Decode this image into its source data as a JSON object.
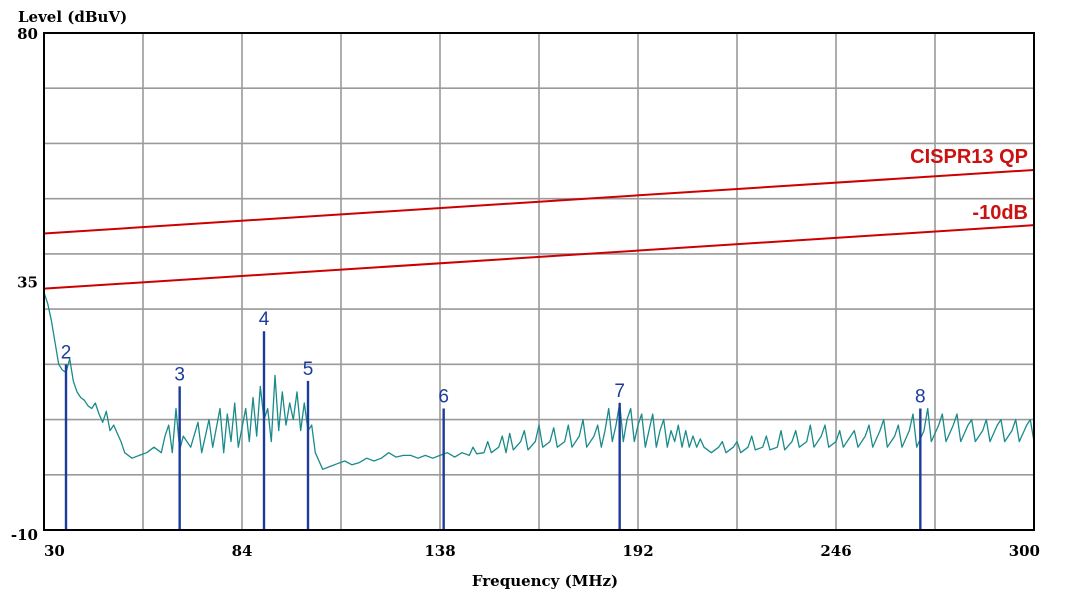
{
  "chart_data": {
    "type": "line",
    "title": "",
    "ylabel": "Level (dBuV)",
    "xlabel": "Frequency (MHz)",
    "xlim": [
      30,
      300
    ],
    "ylim": [
      -10,
      80
    ],
    "x_tick_labels": [
      "30",
      "84",
      "138",
      "192",
      "246",
      "300"
    ],
    "y_tick_labels": [
      "80",
      "35",
      "-10"
    ],
    "x_ticks": [
      30,
      84,
      138,
      192,
      246,
      300
    ],
    "y_ticks": [
      80,
      35,
      -10
    ],
    "grid": true,
    "limit_lines": [
      {
        "name": "CISPR13 QP",
        "color": "#cc0000",
        "points": [
          [
            30,
            43.7
          ],
          [
            300,
            55.2
          ]
        ]
      },
      {
        "name": "-10dB",
        "color": "#cc0000",
        "points": [
          [
            30,
            33.7
          ],
          [
            300,
            45.2
          ]
        ]
      }
    ],
    "series": [
      {
        "color": "#1a8a8a",
        "points": [
          [
            30,
            33
          ],
          [
            31,
            31
          ],
          [
            32,
            28
          ],
          [
            33,
            24
          ],
          [
            34,
            20
          ],
          [
            35,
            19
          ],
          [
            36,
            18.5
          ],
          [
            37,
            21
          ],
          [
            38,
            17
          ],
          [
            39,
            15
          ],
          [
            40,
            14
          ],
          [
            41,
            13.5
          ],
          [
            42,
            12.5
          ],
          [
            43,
            12
          ],
          [
            44,
            13
          ],
          [
            45,
            11
          ],
          [
            46,
            9.5
          ],
          [
            47,
            11.5
          ],
          [
            48,
            8
          ],
          [
            49,
            9
          ],
          [
            50,
            7.5
          ],
          [
            51,
            6
          ],
          [
            52,
            4
          ],
          [
            54,
            3
          ],
          [
            56,
            3.5
          ],
          [
            58,
            4
          ],
          [
            60,
            5
          ],
          [
            62,
            4
          ],
          [
            63,
            7
          ],
          [
            64,
            9
          ],
          [
            65,
            4
          ],
          [
            66,
            12
          ],
          [
            67,
            4.5
          ],
          [
            68,
            7
          ],
          [
            70,
            5
          ],
          [
            72,
            9.5
          ],
          [
            73,
            4
          ],
          [
            75,
            10
          ],
          [
            76,
            5
          ],
          [
            78,
            12
          ],
          [
            79,
            4
          ],
          [
            80,
            11
          ],
          [
            81,
            6
          ],
          [
            82,
            13
          ],
          [
            83,
            5
          ],
          [
            85,
            12
          ],
          [
            86,
            6
          ],
          [
            87,
            14
          ],
          [
            88,
            7
          ],
          [
            89,
            16
          ],
          [
            90,
            10
          ],
          [
            91,
            12
          ],
          [
            92,
            6
          ],
          [
            93,
            18
          ],
          [
            94,
            8
          ],
          [
            95,
            15
          ],
          [
            96,
            9
          ],
          [
            97,
            13
          ],
          [
            98,
            10
          ],
          [
            99,
            15
          ],
          [
            100,
            8
          ],
          [
            101,
            13
          ],
          [
            102,
            8
          ],
          [
            103,
            9
          ],
          [
            104,
            4
          ],
          [
            105,
            2.5
          ],
          [
            106,
            1
          ],
          [
            108,
            1.5
          ],
          [
            110,
            2
          ],
          [
            112,
            2.5
          ],
          [
            114,
            1.8
          ],
          [
            116,
            2.2
          ],
          [
            118,
            3
          ],
          [
            120,
            2.5
          ],
          [
            122,
            3
          ],
          [
            124,
            4
          ],
          [
            126,
            3.2
          ],
          [
            128,
            3.5
          ],
          [
            130,
            3.5
          ],
          [
            132,
            3
          ],
          [
            134,
            3.5
          ],
          [
            136,
            3
          ],
          [
            138,
            3.5
          ],
          [
            140,
            4
          ],
          [
            142,
            3.2
          ],
          [
            144,
            4
          ],
          [
            146,
            3.5
          ],
          [
            147,
            5
          ],
          [
            148,
            3.8
          ],
          [
            150,
            4
          ],
          [
            151,
            6
          ],
          [
            152,
            4
          ],
          [
            154,
            5
          ],
          [
            155,
            7
          ],
          [
            156,
            4
          ],
          [
            157,
            7.5
          ],
          [
            158,
            4.5
          ],
          [
            160,
            6
          ],
          [
            161,
            8
          ],
          [
            162,
            4.5
          ],
          [
            164,
            6
          ],
          [
            165,
            9
          ],
          [
            166,
            5
          ],
          [
            168,
            6
          ],
          [
            169,
            8.5
          ],
          [
            170,
            5
          ],
          [
            172,
            6
          ],
          [
            173,
            9
          ],
          [
            174,
            5
          ],
          [
            176,
            7
          ],
          [
            177,
            10
          ],
          [
            178,
            5
          ],
          [
            180,
            7
          ],
          [
            181,
            9
          ],
          [
            182,
            5
          ],
          [
            183,
            8
          ],
          [
            184,
            12
          ],
          [
            185,
            6
          ],
          [
            186,
            9
          ],
          [
            187,
            13
          ],
          [
            188,
            6
          ],
          [
            189,
            10
          ],
          [
            190,
            12
          ],
          [
            191,
            6
          ],
          [
            192,
            9
          ],
          [
            193,
            11
          ],
          [
            194,
            5
          ],
          [
            195,
            8
          ],
          [
            196,
            11
          ],
          [
            197,
            5
          ],
          [
            198,
            8
          ],
          [
            199,
            10
          ],
          [
            200,
            5
          ],
          [
            201,
            8
          ],
          [
            202,
            6
          ],
          [
            203,
            9
          ],
          [
            204,
            5
          ],
          [
            205,
            8
          ],
          [
            206,
            5
          ],
          [
            207,
            7
          ],
          [
            208,
            5
          ],
          [
            209,
            6.5
          ],
          [
            210,
            5
          ],
          [
            212,
            4
          ],
          [
            214,
            5
          ],
          [
            215,
            6
          ],
          [
            216,
            4
          ],
          [
            218,
            5
          ],
          [
            219,
            6
          ],
          [
            220,
            4
          ],
          [
            222,
            5
          ],
          [
            223,
            7
          ],
          [
            224,
            4.5
          ],
          [
            226,
            5
          ],
          [
            227,
            7
          ],
          [
            228,
            4.5
          ],
          [
            230,
            5
          ],
          [
            231,
            8
          ],
          [
            232,
            4.5
          ],
          [
            234,
            6
          ],
          [
            235,
            8
          ],
          [
            236,
            5
          ],
          [
            238,
            6
          ],
          [
            239,
            9
          ],
          [
            240,
            5
          ],
          [
            242,
            7
          ],
          [
            243,
            9
          ],
          [
            244,
            5
          ],
          [
            246,
            6
          ],
          [
            247,
            8
          ],
          [
            248,
            5
          ],
          [
            250,
            7
          ],
          [
            251,
            8
          ],
          [
            252,
            5
          ],
          [
            254,
            7
          ],
          [
            255,
            9
          ],
          [
            256,
            5
          ],
          [
            258,
            8
          ],
          [
            259,
            10
          ],
          [
            260,
            5
          ],
          [
            262,
            7
          ],
          [
            263,
            9
          ],
          [
            264,
            5
          ],
          [
            266,
            8
          ],
          [
            267,
            11
          ],
          [
            268,
            5
          ],
          [
            270,
            8
          ],
          [
            271,
            12
          ],
          [
            272,
            6
          ],
          [
            274,
            9
          ],
          [
            275,
            11
          ],
          [
            276,
            6
          ],
          [
            278,
            9
          ],
          [
            279,
            11
          ],
          [
            280,
            6
          ],
          [
            282,
            9
          ],
          [
            283,
            10
          ],
          [
            284,
            6
          ],
          [
            286,
            8
          ],
          [
            287,
            10
          ],
          [
            288,
            6
          ],
          [
            290,
            9
          ],
          [
            291,
            10
          ],
          [
            292,
            6
          ],
          [
            294,
            8
          ],
          [
            295,
            10
          ],
          [
            296,
            6
          ],
          [
            298,
            9
          ],
          [
            299,
            10
          ],
          [
            300,
            6
          ]
        ]
      }
    ],
    "markers": [
      {
        "label": "2",
        "x": 36,
        "y": 20
      },
      {
        "label": "3",
        "x": 67,
        "y": 16
      },
      {
        "label": "4",
        "x": 90,
        "y": 26
      },
      {
        "label": "5",
        "x": 102,
        "y": 17
      },
      {
        "label": "6",
        "x": 139,
        "y": 12
      },
      {
        "label": "7",
        "x": 187,
        "y": 13
      },
      {
        "label": "8",
        "x": 269,
        "y": 12
      }
    ],
    "marker_color": "#1c3c9c",
    "limit_label_color": "#cc1111",
    "grid_color": "#9a9a9a"
  }
}
